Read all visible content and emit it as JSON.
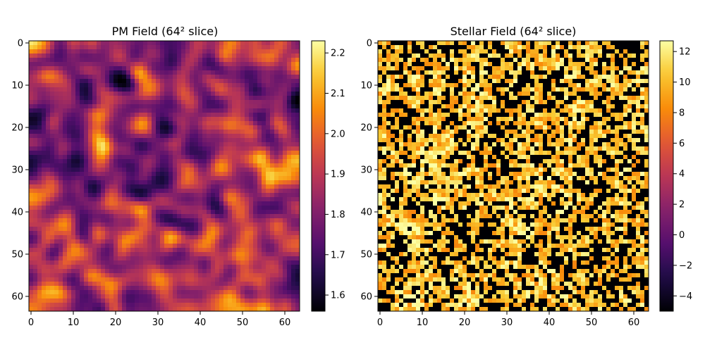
{
  "chart_data": [
    {
      "type": "heatmap",
      "title": "PM Field (64² slice)",
      "grid_size": 64,
      "x_ticks": [
        "0",
        "10",
        "20",
        "30",
        "40",
        "50",
        "60"
      ],
      "y_ticks": [
        "0",
        "10",
        "20",
        "30",
        "40",
        "50",
        "60"
      ],
      "y_axis_inverted": true,
      "colormap": "inferno",
      "colorbar_range": [
        1.56,
        2.23
      ],
      "colorbar_ticks": [
        "1.6",
        "1.7",
        "1.8",
        "1.9",
        "2.0",
        "2.1",
        "2.2"
      ],
      "pattern": "smooth random field with bright filaments and dark voids",
      "seed": 7
    },
    {
      "type": "heatmap",
      "title": "Stellar Field (64² slice)",
      "grid_size": 64,
      "x_ticks": [
        "0",
        "10",
        "20",
        "30",
        "40",
        "50",
        "60"
      ],
      "y_ticks": [
        "0",
        "10",
        "20",
        "30",
        "40",
        "50",
        "60"
      ],
      "y_axis_inverted": true,
      "colormap": "inferno",
      "colorbar_range": [
        -5,
        12.7
      ],
      "colorbar_ticks": [
        "−4",
        "−2",
        "0",
        "2",
        "4",
        "6",
        "8",
        "10",
        "12"
      ],
      "pattern": "sparse speckled field: many cells at minimum (-5), others 8–12",
      "seed": 11
    }
  ]
}
